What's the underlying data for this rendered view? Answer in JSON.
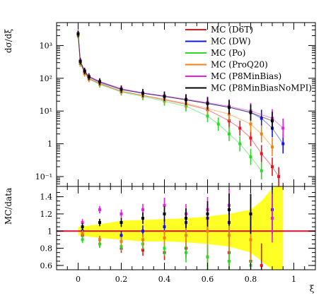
{
  "chart_data": [
    {
      "type": "scatter",
      "ylabel": "dσ/dξ",
      "yscale": "log",
      "ylim": [
        0.05,
        5000
      ],
      "xlim": [
        -0.1,
        1.1
      ],
      "legend_position": "top-right",
      "yticks": [
        {
          "value": 1000,
          "label": "10³"
        },
        {
          "value": 100,
          "label": "10²"
        },
        {
          "value": 10,
          "label": "10¹"
        },
        {
          "value": 1,
          "label": "1"
        },
        {
          "value": 0.1,
          "label": "10⁻¹"
        }
      ],
      "series": [
        {
          "name": "MC (D6T)",
          "color": "#e8141e",
          "x": [
            0.0,
            0.01,
            0.03,
            0.05,
            0.1,
            0.2,
            0.3,
            0.4,
            0.5,
            0.6,
            0.7,
            0.75,
            0.8,
            0.85,
            0.9,
            0.93
          ],
          "y": [
            2300,
            300,
            150,
            100,
            70,
            40,
            30,
            22,
            16,
            11,
            5,
            3,
            1.5,
            0.5,
            0.2,
            0.1
          ]
        },
        {
          "name": "MC (DW)",
          "color": "#1414e6",
          "x": [
            0.0,
            0.01,
            0.03,
            0.05,
            0.1,
            0.2,
            0.3,
            0.4,
            0.5,
            0.6,
            0.7,
            0.8,
            0.85,
            0.9,
            0.95
          ],
          "y": [
            2200,
            320,
            160,
            110,
            75,
            45,
            35,
            28,
            22,
            17,
            13,
            9,
            6,
            3,
            1
          ]
        },
        {
          "name": "MC (Po)",
          "color": "#28dc28",
          "x": [
            0.0,
            0.01,
            0.03,
            0.05,
            0.1,
            0.2,
            0.3,
            0.4,
            0.5,
            0.6,
            0.65,
            0.7,
            0.75,
            0.8,
            0.85
          ],
          "y": [
            2000,
            280,
            150,
            95,
            65,
            38,
            28,
            20,
            14,
            7,
            4,
            2,
            1,
            0.4,
            0.15
          ]
        },
        {
          "name": "MC (ProQ20)",
          "color": "#f08214",
          "x": [
            0.0,
            0.01,
            0.03,
            0.05,
            0.1,
            0.2,
            0.3,
            0.4,
            0.5,
            0.6,
            0.7,
            0.8,
            0.85,
            0.9
          ],
          "y": [
            2100,
            290,
            140,
            95,
            68,
            40,
            30,
            23,
            17,
            12,
            8,
            4,
            2,
            0.8
          ]
        },
        {
          "name": "MC (P8MinBias)",
          "color": "#e61ee6",
          "x": [
            0.0,
            0.01,
            0.03,
            0.05,
            0.1,
            0.2,
            0.3,
            0.4,
            0.5,
            0.6,
            0.7,
            0.8,
            0.9,
            0.95
          ],
          "y": [
            2300,
            340,
            170,
            115,
            80,
            48,
            36,
            29,
            23,
            18,
            14,
            10,
            6,
            3
          ]
        },
        {
          "name": "MC (P8MinBiasNoMPI)",
          "color": "#000000",
          "x": [
            0.0,
            0.01,
            0.03,
            0.05,
            0.1,
            0.2,
            0.3,
            0.4,
            0.5,
            0.6,
            0.7,
            0.8,
            0.9
          ],
          "y": [
            2250,
            330,
            165,
            110,
            78,
            46,
            35,
            28,
            22,
            17,
            13,
            9,
            5
          ]
        }
      ]
    },
    {
      "type": "scatter",
      "ylabel": "MC/data",
      "xlabel": "ξ",
      "ylim": [
        0.55,
        1.52
      ],
      "xlim": [
        -0.1,
        1.1
      ],
      "yticks": [
        {
          "value": 0.6,
          "label": "0.6"
        },
        {
          "value": 0.8,
          "label": "0.8"
        },
        {
          "value": 1,
          "label": "1"
        },
        {
          "value": 1.2,
          "label": "1.2"
        },
        {
          "value": 1.4,
          "label": "1.4"
        }
      ],
      "xticks": [
        {
          "value": 0,
          "label": "0"
        },
        {
          "value": 0.2,
          "label": "0.2"
        },
        {
          "value": 0.4,
          "label": "0.4"
        },
        {
          "value": 0.6,
          "label": "0.6"
        },
        {
          "value": 0.8,
          "label": "0.8"
        },
        {
          "value": 1,
          "label": "1"
        }
      ],
      "reference_line": 1,
      "reference_color": "#d4142a",
      "uncertainty_band": {
        "color": "#ffff00",
        "x": [
          0.0,
          0.1,
          0.2,
          0.3,
          0.4,
          0.5,
          0.6,
          0.7,
          0.8,
          0.85,
          0.9,
          0.92,
          0.95
        ],
        "low": [
          0.95,
          0.92,
          0.9,
          0.88,
          0.88,
          0.87,
          0.85,
          0.82,
          0.75,
          0.65,
          0.55,
          0.55,
          0.55
        ],
        "high": [
          1.05,
          1.08,
          1.12,
          1.13,
          1.14,
          1.15,
          1.17,
          1.2,
          1.25,
          1.35,
          1.5,
          1.52,
          1.52
        ]
      },
      "series": [
        {
          "name": "MC (D6T)",
          "color": "#e8141e",
          "x": [
            0.02,
            0.1,
            0.2,
            0.3,
            0.4,
            0.5,
            0.6,
            0.7,
            0.8,
            0.85
          ],
          "y": [
            0.95,
            0.85,
            0.8,
            0.78,
            0.75,
            0.8,
            0.7,
            0.75,
            0.65,
            0.6
          ]
        },
        {
          "name": "MC (DW)",
          "color": "#1414e6",
          "x": [
            0.02,
            0.1,
            0.2,
            0.3,
            0.4,
            0.5,
            0.6,
            0.7,
            0.8,
            0.9
          ],
          "y": [
            1.0,
            0.9,
            0.95,
            1.0,
            1.05,
            1.1,
            1.15,
            1.1,
            1.2,
            1.25
          ]
        },
        {
          "name": "MC (Po)",
          "color": "#28dc28",
          "x": [
            0.02,
            0.1,
            0.2,
            0.3,
            0.4,
            0.5,
            0.6,
            0.7,
            0.8
          ],
          "y": [
            0.9,
            0.85,
            0.82,
            0.85,
            0.8,
            0.75,
            0.7,
            0.65,
            0.6
          ]
        },
        {
          "name": "MC (ProQ20)",
          "color": "#f08214",
          "x": [
            0.02,
            0.1,
            0.2,
            0.3,
            0.4,
            0.5,
            0.6,
            0.7,
            0.8
          ],
          "y": [
            0.98,
            0.9,
            0.88,
            0.9,
            0.92,
            0.95,
            1.0,
            0.95,
            0.9
          ]
        },
        {
          "name": "MC (P8MinBias)",
          "color": "#e61ee6",
          "x": [
            0.02,
            0.1,
            0.2,
            0.3,
            0.4,
            0.5,
            0.6,
            0.7,
            0.8,
            0.9
          ],
          "y": [
            1.1,
            1.25,
            1.2,
            1.25,
            1.3,
            1.2,
            1.25,
            1.3,
            1.2,
            1.15
          ]
        },
        {
          "name": "MC (P8MinBiasNoMPI)",
          "color": "#000000",
          "x": [
            0.02,
            0.1,
            0.2,
            0.3,
            0.4,
            0.5,
            0.6,
            0.7,
            0.8
          ],
          "y": [
            1.05,
            1.1,
            1.1,
            1.15,
            1.2,
            1.15,
            1.2,
            1.25,
            1.2
          ]
        }
      ]
    }
  ]
}
